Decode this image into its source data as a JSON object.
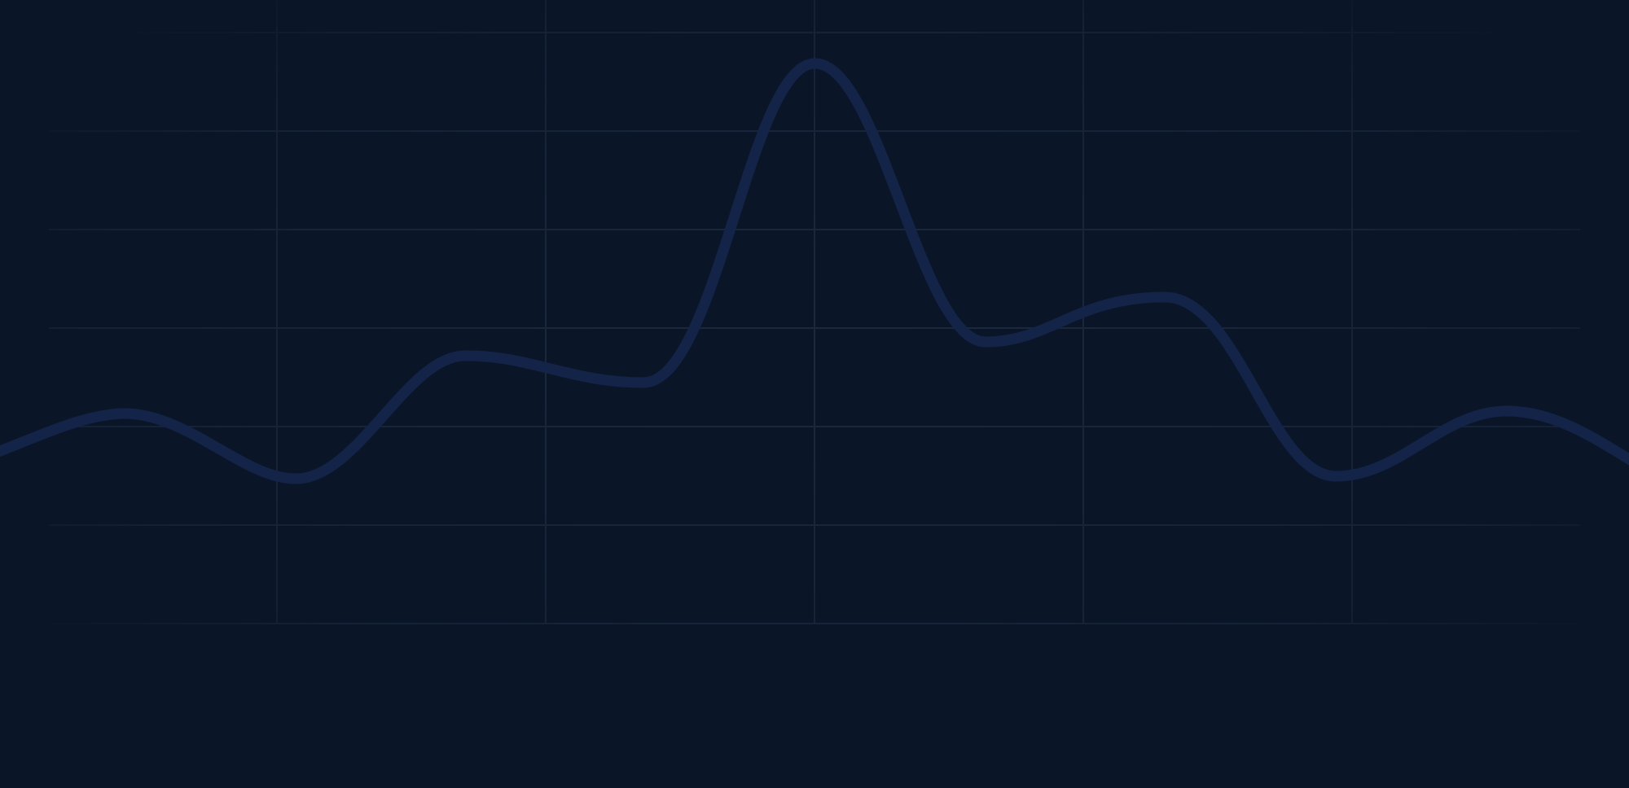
{
  "colors": {
    "background": "#0a1628",
    "grid_line": "#1c2a40",
    "curve": "#142448"
  },
  "decor": {
    "curve_peak_estimate": 100,
    "grid": {
      "horizontal_lines": 7,
      "vertical_lines": 5
    }
  }
}
